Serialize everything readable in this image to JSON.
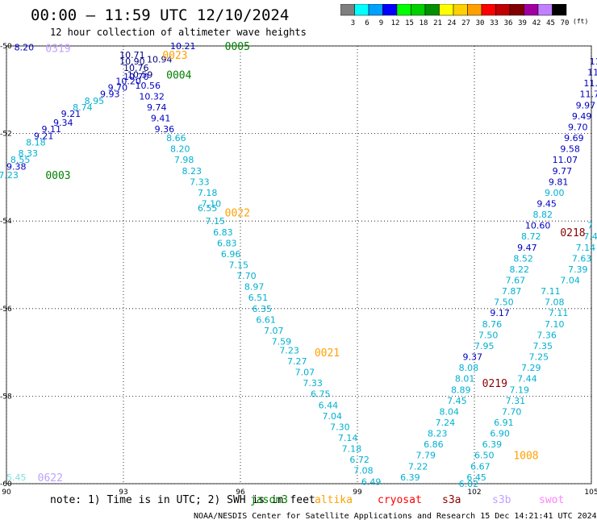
{
  "header": {
    "title": "00:00 – 11:59 UTC 12/10/2024",
    "subtitle": "12 hour collection of altimeter wave heights"
  },
  "legend": {
    "unit": "(ft)",
    "bins": [
      {
        "label": "3",
        "color": "#7f7f7f"
      },
      {
        "label": "6",
        "color": "#00ffff"
      },
      {
        "label": "9",
        "color": "#00a0ff"
      },
      {
        "label": "12",
        "color": "#0000ff"
      },
      {
        "label": "15",
        "color": "#00ff00"
      },
      {
        "label": "18",
        "color": "#00d000"
      },
      {
        "label": "21",
        "color": "#009000"
      },
      {
        "label": "24",
        "color": "#ffff00"
      },
      {
        "label": "27",
        "color": "#ffd000"
      },
      {
        "label": "30",
        "color": "#ffa000"
      },
      {
        "label": "33",
        "color": "#ff0000"
      },
      {
        "label": "36",
        "color": "#c00000"
      },
      {
        "label": "39",
        "color": "#800000"
      },
      {
        "label": "42",
        "color": "#a000a0"
      },
      {
        "label": "45",
        "color": "#c080ff"
      },
      {
        "label": "70",
        "color": "#000000"
      }
    ]
  },
  "axes": {
    "x_ticks": [
      "90",
      "93",
      "96",
      "99",
      "102",
      "105"
    ],
    "y_ticks": [
      "-50",
      "-52",
      "-54",
      "-56",
      "-58",
      "-60"
    ],
    "x_range": [
      90,
      105
    ],
    "y_range": [
      -50,
      -60
    ]
  },
  "satellites": [
    {
      "name": "jason3",
      "color": "#008000"
    },
    {
      "name": "altika",
      "color": "#ffa000"
    },
    {
      "name": "cryosat",
      "color": "#ff0000"
    },
    {
      "name": "s3a",
      "color": "#8b0000"
    },
    {
      "name": "s3b",
      "color": "#c0a0ff"
    },
    {
      "name": "swot",
      "color": "#ff80ff"
    }
  ],
  "footer": {
    "note": "note:  1) Time is in UTC; 2) SWH is in feet",
    "credit": "NOAA/NESDIS Center for Satellite Applications and Research    15 Dec 14:21:41 UTC 2024"
  },
  "colors": {
    "c6": "#00b0d0",
    "c9": "#0000c0",
    "c12": "#000080",
    "green": "#008000",
    "orange": "#ffa000",
    "darkred": "#8b0000",
    "lav": "#c0a0ff",
    "pink": "#ff80ff",
    "cyanlight": "#80e0e0"
  },
  "chart_data": {
    "type": "scatter",
    "xlabel": "",
    "ylabel": "",
    "xlim": [
      90,
      105
    ],
    "ylim": [
      -60,
      -50
    ],
    "track_labels": [
      {
        "text": "0319",
        "lon": 91.0,
        "lat": -50.05,
        "color": "lav"
      },
      {
        "text": "0005",
        "lon": 95.6,
        "lat": -50.0,
        "color": "green"
      },
      {
        "text": "0023",
        "lon": 94.0,
        "lat": -50.2,
        "color": "orange"
      },
      {
        "text": "0004",
        "lon": 94.1,
        "lat": -50.65,
        "color": "green"
      },
      {
        "text": "0003",
        "lon": 91.0,
        "lat": -52.95,
        "color": "green"
      },
      {
        "text": "0022",
        "lon": 95.6,
        "lat": -53.8,
        "color": "orange"
      },
      {
        "text": "0021",
        "lon": 97.9,
        "lat": -57.0,
        "color": "orange"
      },
      {
        "text": "0218",
        "lon": 104.2,
        "lat": -54.25,
        "color": "darkred"
      },
      {
        "text": "0219",
        "lon": 102.2,
        "lat": -57.7,
        "color": "darkred"
      },
      {
        "text": "1008",
        "lon": 103.0,
        "lat": -59.35,
        "color": "orange"
      },
      {
        "text": "0622",
        "lon": 90.8,
        "lat": -59.85,
        "color": "lav"
      }
    ],
    "points": [
      {
        "v": "8.20",
        "lon": 90.2,
        "lat": -50.03,
        "c": "c9"
      },
      {
        "v": "10.21",
        "lon": 94.2,
        "lat": -50.0,
        "c": "c9"
      },
      {
        "v": "10.71",
        "lon": 92.9,
        "lat": -50.2,
        "c": "c12"
      },
      {
        "v": "10.90",
        "lon": 92.9,
        "lat": -50.35,
        "c": "c12"
      },
      {
        "v": "10.94",
        "lon": 93.6,
        "lat": -50.3,
        "c": "c12"
      },
      {
        "v": "10.76",
        "lon": 93.0,
        "lat": -50.5,
        "c": "c12"
      },
      {
        "v": "10.59",
        "lon": 93.1,
        "lat": -50.65,
        "c": "c12"
      },
      {
        "v": "10.70",
        "lon": 93.0,
        "lat": -50.7,
        "c": "c9"
      },
      {
        "v": "10.20",
        "lon": 92.8,
        "lat": -50.8,
        "c": "c9"
      },
      {
        "v": "10.56",
        "lon": 93.3,
        "lat": -50.9,
        "c": "c9"
      },
      {
        "v": "9.70",
        "lon": 92.6,
        "lat": -50.95,
        "c": "c9"
      },
      {
        "v": "9.93",
        "lon": 92.4,
        "lat": -51.1,
        "c": "c9"
      },
      {
        "v": "10.32",
        "lon": 93.4,
        "lat": -51.15,
        "c": "c9"
      },
      {
        "v": "8.95",
        "lon": 92.0,
        "lat": -51.25,
        "c": "c6"
      },
      {
        "v": "8.74",
        "lon": 91.7,
        "lat": -51.4,
        "c": "c6"
      },
      {
        "v": "9.74",
        "lon": 93.6,
        "lat": -51.4,
        "c": "c9"
      },
      {
        "v": "9.21",
        "lon": 91.4,
        "lat": -51.55,
        "c": "c9"
      },
      {
        "v": "9.41",
        "lon": 93.7,
        "lat": -51.65,
        "c": "c9"
      },
      {
        "v": "9.34",
        "lon": 91.2,
        "lat": -51.75,
        "c": "c9"
      },
      {
        "v": "9.11",
        "lon": 90.9,
        "lat": -51.9,
        "c": "c9"
      },
      {
        "v": "9.36",
        "lon": 93.8,
        "lat": -51.9,
        "c": "c9"
      },
      {
        "v": "9.21",
        "lon": 90.7,
        "lat": -52.05,
        "c": "c9"
      },
      {
        "v": "8.66",
        "lon": 94.1,
        "lat": -52.1,
        "c": "c6"
      },
      {
        "v": "8.18",
        "lon": 90.5,
        "lat": -52.2,
        "c": "c6"
      },
      {
        "v": "8.20",
        "lon": 94.2,
        "lat": -52.35,
        "c": "c6"
      },
      {
        "v": "8.33",
        "lon": 90.3,
        "lat": -52.45,
        "c": "c6"
      },
      {
        "v": "8.55",
        "lon": 90.1,
        "lat": -52.6,
        "c": "c6"
      },
      {
        "v": "7.98",
        "lon": 94.3,
        "lat": -52.6,
        "c": "c6"
      },
      {
        "v": "9.38",
        "lon": 90.0,
        "lat": -52.75,
        "c": "c9"
      },
      {
        "v": "7.23",
        "lon": 89.8,
        "lat": -52.95,
        "c": "c6"
      },
      {
        "v": "8.23",
        "lon": 94.5,
        "lat": -52.85,
        "c": "c6"
      },
      {
        "v": "7.33",
        "lon": 94.7,
        "lat": -53.1,
        "c": "c6"
      },
      {
        "v": "7.18",
        "lon": 94.9,
        "lat": -53.35,
        "c": "c6"
      },
      {
        "v": "7.10",
        "lon": 95.0,
        "lat": -53.6,
        "c": "c6"
      },
      {
        "v": "6.55",
        "lon": 94.9,
        "lat": -53.7,
        "c": "c6"
      },
      {
        "v": "7.15",
        "lon": 95.1,
        "lat": -54.0,
        "c": "c6"
      },
      {
        "v": "6.83",
        "lon": 95.3,
        "lat": -54.25,
        "c": "c6"
      },
      {
        "v": "6.83",
        "lon": 95.4,
        "lat": -54.5,
        "c": "c6"
      },
      {
        "v": "6.96",
        "lon": 95.5,
        "lat": -54.75,
        "c": "c6"
      },
      {
        "v": "7.15",
        "lon": 95.7,
        "lat": -55.0,
        "c": "c6"
      },
      {
        "v": "7.70",
        "lon": 95.9,
        "lat": -55.25,
        "c": "c6"
      },
      {
        "v": "8.97",
        "lon": 96.1,
        "lat": -55.5,
        "c": "c6"
      },
      {
        "v": "6.51",
        "lon": 96.2,
        "lat": -55.75,
        "c": "c6"
      },
      {
        "v": "6.35",
        "lon": 96.3,
        "lat": -56.0,
        "c": "c6"
      },
      {
        "v": "6.61",
        "lon": 96.4,
        "lat": -56.25,
        "c": "c6"
      },
      {
        "v": "7.07",
        "lon": 96.6,
        "lat": -56.5,
        "c": "c6"
      },
      {
        "v": "7.59",
        "lon": 96.8,
        "lat": -56.75,
        "c": "c6"
      },
      {
        "v": "7.23",
        "lon": 97.0,
        "lat": -56.95,
        "c": "c6"
      },
      {
        "v": "7.27",
        "lon": 97.2,
        "lat": -57.2,
        "c": "c6"
      },
      {
        "v": "7.07",
        "lon": 97.4,
        "lat": -57.45,
        "c": "c6"
      },
      {
        "v": "7.33",
        "lon": 97.6,
        "lat": -57.7,
        "c": "c6"
      },
      {
        "v": "6.75",
        "lon": 97.8,
        "lat": -57.95,
        "c": "c6"
      },
      {
        "v": "6.44",
        "lon": 98.0,
        "lat": -58.2,
        "c": "c6"
      },
      {
        "v": "7.04",
        "lon": 98.1,
        "lat": -58.45,
        "c": "c6"
      },
      {
        "v": "7.30",
        "lon": 98.3,
        "lat": -58.7,
        "c": "c6"
      },
      {
        "v": "7.14",
        "lon": 98.5,
        "lat": -58.95,
        "c": "c6"
      },
      {
        "v": "7.18",
        "lon": 98.6,
        "lat": -59.2,
        "c": "c6"
      },
      {
        "v": "6.72",
        "lon": 98.8,
        "lat": -59.45,
        "c": "c6"
      },
      {
        "v": "7.08",
        "lon": 98.9,
        "lat": -59.7,
        "c": "c6"
      },
      {
        "v": "6.49",
        "lon": 99.1,
        "lat": -59.95,
        "c": "c6"
      },
      {
        "v": "6.39",
        "lon": 100.1,
        "lat": -59.85,
        "c": "c6"
      },
      {
        "v": "7.22",
        "lon": 100.3,
        "lat": -59.6,
        "c": "c6"
      },
      {
        "v": "7.79",
        "lon": 100.5,
        "lat": -59.35,
        "c": "c6"
      },
      {
        "v": "6.86",
        "lon": 100.7,
        "lat": -59.1,
        "c": "c6"
      },
      {
        "v": "8.23",
        "lon": 100.8,
        "lat": -58.85,
        "c": "c6"
      },
      {
        "v": "7.24",
        "lon": 101.0,
        "lat": -58.6,
        "c": "c6"
      },
      {
        "v": "8.04",
        "lon": 101.1,
        "lat": -58.35,
        "c": "c6"
      },
      {
        "v": "7.45",
        "lon": 101.3,
        "lat": -58.1,
        "c": "c6"
      },
      {
        "v": "8.89",
        "lon": 101.4,
        "lat": -57.85,
        "c": "c6"
      },
      {
        "v": "8.01",
        "lon": 101.5,
        "lat": -57.6,
        "c": "c6"
      },
      {
        "v": "8.08",
        "lon": 101.6,
        "lat": -57.35,
        "c": "c6"
      },
      {
        "v": "9.37",
        "lon": 101.7,
        "lat": -57.1,
        "c": "c9"
      },
      {
        "v": "7.95",
        "lon": 102.0,
        "lat": -56.85,
        "c": "c6"
      },
      {
        "v": "7.50",
        "lon": 102.1,
        "lat": -56.6,
        "c": "c6"
      },
      {
        "v": "8.76",
        "lon": 102.2,
        "lat": -56.35,
        "c": "c6"
      },
      {
        "v": "9.17",
        "lon": 102.4,
        "lat": -56.1,
        "c": "c9"
      },
      {
        "v": "7.50",
        "lon": 102.5,
        "lat": -55.85,
        "c": "c6"
      },
      {
        "v": "7.87",
        "lon": 102.7,
        "lat": -55.6,
        "c": "c6"
      },
      {
        "v": "7.67",
        "lon": 102.8,
        "lat": -55.35,
        "c": "c6"
      },
      {
        "v": "8.22",
        "lon": 102.9,
        "lat": -55.1,
        "c": "c6"
      },
      {
        "v": "8.52",
        "lon": 103.0,
        "lat": -54.85,
        "c": "c6"
      },
      {
        "v": "9.47",
        "lon": 103.1,
        "lat": -54.6,
        "c": "c9"
      },
      {
        "v": "8.72",
        "lon": 103.2,
        "lat": -54.35,
        "c": "c6"
      },
      {
        "v": "10.60",
        "lon": 103.3,
        "lat": -54.1,
        "c": "c9"
      },
      {
        "v": "8.82",
        "lon": 103.5,
        "lat": -53.85,
        "c": "c6"
      },
      {
        "v": "9.45",
        "lon": 103.6,
        "lat": -53.6,
        "c": "c9"
      },
      {
        "v": "9.00",
        "lon": 103.8,
        "lat": -53.35,
        "c": "c6"
      },
      {
        "v": "9.81",
        "lon": 103.9,
        "lat": -53.1,
        "c": "c9"
      },
      {
        "v": "9.77",
        "lon": 104.0,
        "lat": -52.85,
        "c": "c9"
      },
      {
        "v": "11.07",
        "lon": 104.0,
        "lat": -52.6,
        "c": "c9"
      },
      {
        "v": "9.58",
        "lon": 104.2,
        "lat": -52.35,
        "c": "c9"
      },
      {
        "v": "9.69",
        "lon": 104.3,
        "lat": -52.1,
        "c": "c9"
      },
      {
        "v": "9.70",
        "lon": 104.4,
        "lat": -51.85,
        "c": "c9"
      },
      {
        "v": "9.49",
        "lon": 104.5,
        "lat": -51.6,
        "c": "c9"
      },
      {
        "v": "9.97",
        "lon": 104.6,
        "lat": -51.35,
        "c": "c9"
      },
      {
        "v": "11.7",
        "lon": 104.7,
        "lat": -51.1,
        "c": "c9"
      },
      {
        "v": "11.0",
        "lon": 104.8,
        "lat": -50.85,
        "c": "c9"
      },
      {
        "v": "11",
        "lon": 104.9,
        "lat": -50.6,
        "c": "c9"
      },
      {
        "v": "11",
        "lon": 104.95,
        "lat": -50.35,
        "c": "c9"
      },
      {
        "v": "7.11",
        "lon": 103.7,
        "lat": -55.6,
        "c": "c6"
      },
      {
        "v": "7.08",
        "lon": 103.8,
        "lat": -55.85,
        "c": "c6"
      },
      {
        "v": "7.11",
        "lon": 103.9,
        "lat": -56.1,
        "c": "c6"
      },
      {
        "v": "7.10",
        "lon": 103.8,
        "lat": -56.35,
        "c": "c6"
      },
      {
        "v": "7.36",
        "lon": 103.6,
        "lat": -56.6,
        "c": "c6"
      },
      {
        "v": "7.35",
        "lon": 103.5,
        "lat": -56.85,
        "c": "c6"
      },
      {
        "v": "7.25",
        "lon": 103.4,
        "lat": -57.1,
        "c": "c6"
      },
      {
        "v": "7.29",
        "lon": 103.2,
        "lat": -57.35,
        "c": "c6"
      },
      {
        "v": "7.44",
        "lon": 103.1,
        "lat": -57.6,
        "c": "c6"
      },
      {
        "v": "7.19",
        "lon": 102.9,
        "lat": -57.85,
        "c": "c6"
      },
      {
        "v": "7.31",
        "lon": 102.8,
        "lat": -58.1,
        "c": "c6"
      },
      {
        "v": "7.70",
        "lon": 102.7,
        "lat": -58.35,
        "c": "c6"
      },
      {
        "v": "6.91",
        "lon": 102.5,
        "lat": -58.6,
        "c": "c6"
      },
      {
        "v": "6.90",
        "lon": 102.4,
        "lat": -58.85,
        "c": "c6"
      },
      {
        "v": "6.39",
        "lon": 102.2,
        "lat": -59.1,
        "c": "c6"
      },
      {
        "v": "6.50",
        "lon": 102.0,
        "lat": -59.35,
        "c": "c6"
      },
      {
        "v": "6.67",
        "lon": 101.9,
        "lat": -59.6,
        "c": "c6"
      },
      {
        "v": "6.45",
        "lon": 101.8,
        "lat": -59.85,
        "c": "c6"
      },
      {
        "v": "6.02",
        "lon": 101.6,
        "lat": -60.0,
        "c": "c6"
      },
      {
        "v": "7.04",
        "lon": 104.2,
        "lat": -55.35,
        "c": "c6"
      },
      {
        "v": "7.39",
        "lon": 104.4,
        "lat": -55.1,
        "c": "c6"
      },
      {
        "v": "7.63",
        "lon": 104.5,
        "lat": -54.85,
        "c": "c6"
      },
      {
        "v": "7.14",
        "lon": 104.6,
        "lat": -54.6,
        "c": "c6"
      },
      {
        "v": "7.4",
        "lon": 104.8,
        "lat": -54.35,
        "c": "c6"
      },
      {
        "v": "7",
        "lon": 104.9,
        "lat": -54.1,
        "c": "c6"
      },
      {
        "v": "5.45",
        "lon": 90.0,
        "lat": -59.85,
        "c": "cyanlight"
      }
    ]
  }
}
